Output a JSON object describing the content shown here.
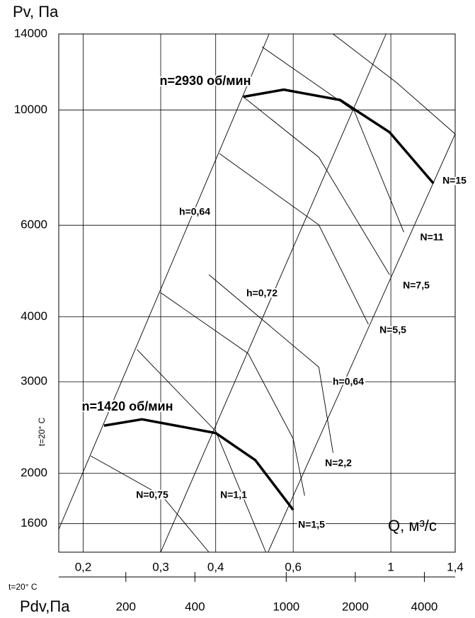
{
  "chart_data": {
    "type": "line",
    "y_label": "Pv, Па",
    "x_label": "Q, м³/с",
    "x2_label": "Pdv,Па",
    "temp_label": "t=20° C",
    "temp_label_bottom": "t=20° C",
    "log_x": true,
    "log_y": true,
    "grid": true,
    "color": "#000000",
    "xlim": [
      0.176,
      1.4
    ],
    "xticks": [
      {
        "value": 0.2,
        "label": "0,2"
      },
      {
        "value": 0.3,
        "label": "0,3"
      },
      {
        "value": 0.4,
        "label": "0,4"
      },
      {
        "value": 0.6,
        "label": "0,6"
      },
      1,
      {
        "value": 1.4,
        "label": "1,4"
      }
    ],
    "ylim": [
      1410,
      14000
    ],
    "yticks": [
      1600,
      2000,
      3000,
      4000,
      6000,
      10000,
      14000
    ],
    "x2lim": [
      102,
      5450
    ],
    "x2ticks": [
      200,
      400,
      1000,
      2000,
      4000
    ],
    "series": [
      {
        "name": "n=2930 об/мин",
        "color": "#000000",
        "x": [
          0.462,
          0.571,
          0.767,
          0.993,
          1.25
        ],
        "values": [
          10600,
          10940,
          10450,
          9060,
          7220
        ]
      },
      {
        "name": "n=1420 об/мин",
        "color": "#000000",
        "x": [
          0.223,
          0.272,
          0.4,
          0.492,
          0.6
        ],
        "values": [
          2470,
          2540,
          2390,
          2120,
          1700
        ]
      }
    ],
    "lines": [
      {
        "label": "h=0,64",
        "x": [
          0.176,
          0.529
        ],
        "y": [
          1560,
          14000
        ]
      },
      {
        "label": "h=0,72",
        "x": [
          0.3,
          0.975
        ],
        "y": [
          1410,
          14000
        ]
      },
      {
        "label": "h=0,64",
        "x": [
          0.526,
          1.4
        ],
        "y": [
          1410,
          8990
        ]
      },
      {
        "label": "N=0,75",
        "x": [
          0.208,
          0.302,
          0.386
        ],
        "y": [
          2160,
          1810,
          1410
        ]
      },
      {
        "label": "N=1,1",
        "x": [
          0.265,
          0.4,
          0.52
        ],
        "y": [
          3460,
          2410,
          1410
        ]
      },
      {
        "label": "N=1,5",
        "x": [
          0.3,
          0.474,
          0.6,
          0.637
        ],
        "y": [
          4450,
          3400,
          2330,
          1810
        ]
      },
      {
        "label": "N=2,2",
        "x": [
          0.386,
          0.686,
          0.739
        ],
        "y": [
          4820,
          3200,
          2190
        ]
      },
      {
        "label": "N=5,5",
        "x": [
          0.408,
          0.686,
          0.889
        ],
        "y": [
          8240,
          6010,
          3870
        ]
      },
      {
        "label": "N=7,5",
        "x": [
          0.462,
          0.686,
          0.993
        ],
        "y": [
          10600,
          8110,
          4820
        ]
      },
      {
        "label": "N=11",
        "x": [
          0.51,
          0.826,
          1.07
        ],
        "y": [
          13220,
          9950,
          5820
        ]
      },
      {
        "label": "N=15",
        "x": [
          0.739,
          1.03,
          1.4
        ],
        "y": [
          14000,
          11290,
          8990
        ]
      }
    ]
  }
}
